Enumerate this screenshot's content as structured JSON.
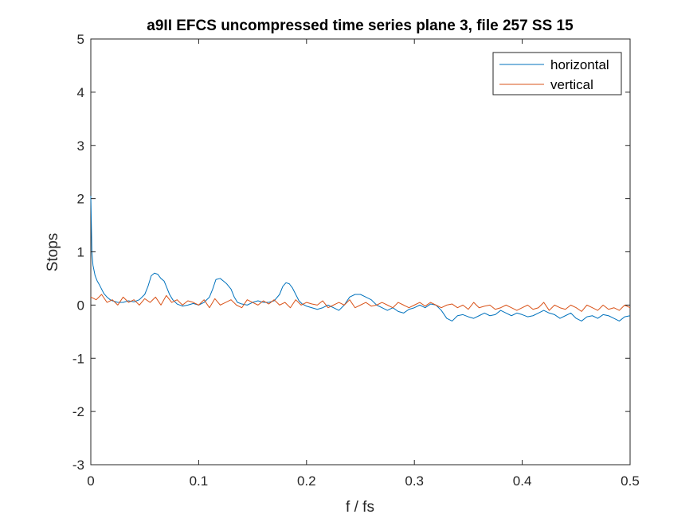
{
  "chart_data": {
    "type": "line",
    "title": "a9II EFCS uncompressed time series plane 3, file 257 SS 15",
    "xlabel": "f / fs",
    "ylabel": "Stops",
    "xlim": [
      0,
      0.5
    ],
    "ylim": [
      -3,
      5
    ],
    "xticks": [
      0,
      0.1,
      0.2,
      0.3,
      0.4,
      0.5
    ],
    "xtick_labels": [
      "0",
      "0.1",
      "0.2",
      "0.3",
      "0.4",
      "0.5"
    ],
    "yticks": [
      -3,
      -2,
      -1,
      0,
      1,
      2,
      3,
      4,
      5
    ],
    "ytick_labels": [
      "-3",
      "-2",
      "-1",
      "0",
      "1",
      "2",
      "3",
      "4",
      "5"
    ],
    "grid": false,
    "legend": {
      "location": "top-right"
    },
    "series": [
      {
        "name": "horizontal",
        "color": "#0072BD",
        "x": [
          0,
          0.001,
          0.002,
          0.004,
          0.006,
          0.008,
          0.01,
          0.012,
          0.015,
          0.018,
          0.02,
          0.025,
          0.03,
          0.035,
          0.04,
          0.045,
          0.05,
          0.053,
          0.056,
          0.059,
          0.062,
          0.065,
          0.068,
          0.07,
          0.073,
          0.076,
          0.08,
          0.085,
          0.09,
          0.095,
          0.1,
          0.105,
          0.11,
          0.113,
          0.116,
          0.12,
          0.123,
          0.126,
          0.13,
          0.133,
          0.136,
          0.14,
          0.145,
          0.15,
          0.155,
          0.16,
          0.165,
          0.17,
          0.175,
          0.178,
          0.181,
          0.184,
          0.187,
          0.19,
          0.193,
          0.196,
          0.2,
          0.205,
          0.21,
          0.215,
          0.22,
          0.225,
          0.23,
          0.235,
          0.24,
          0.245,
          0.25,
          0.255,
          0.26,
          0.265,
          0.27,
          0.275,
          0.28,
          0.285,
          0.29,
          0.295,
          0.3,
          0.305,
          0.31,
          0.315,
          0.32,
          0.325,
          0.33,
          0.335,
          0.34,
          0.345,
          0.35,
          0.355,
          0.36,
          0.365,
          0.37,
          0.375,
          0.38,
          0.385,
          0.39,
          0.395,
          0.4,
          0.405,
          0.41,
          0.415,
          0.42,
          0.425,
          0.43,
          0.435,
          0.44,
          0.445,
          0.45,
          0.455,
          0.46,
          0.465,
          0.47,
          0.475,
          0.48,
          0.485,
          0.49,
          0.495,
          0.5
        ],
        "values": [
          2.05,
          1.0,
          0.75,
          0.55,
          0.45,
          0.38,
          0.3,
          0.22,
          0.15,
          0.1,
          0.08,
          0.05,
          0.05,
          0.08,
          0.06,
          0.1,
          0.2,
          0.35,
          0.55,
          0.6,
          0.58,
          0.5,
          0.45,
          0.35,
          0.2,
          0.1,
          0.02,
          -0.02,
          0.0,
          0.03,
          0.0,
          0.05,
          0.15,
          0.3,
          0.48,
          0.5,
          0.45,
          0.4,
          0.3,
          0.15,
          0.05,
          0.02,
          0.0,
          0.05,
          0.08,
          0.05,
          0.05,
          0.08,
          0.2,
          0.35,
          0.42,
          0.4,
          0.32,
          0.2,
          0.08,
          0.02,
          -0.02,
          -0.05,
          -0.08,
          -0.05,
          0.0,
          -0.05,
          -0.1,
          0.0,
          0.15,
          0.2,
          0.2,
          0.15,
          0.1,
          0.0,
          -0.05,
          -0.1,
          -0.05,
          -0.12,
          -0.15,
          -0.08,
          -0.05,
          0.0,
          -0.05,
          0.02,
          0.0,
          -0.1,
          -0.25,
          -0.3,
          -0.2,
          -0.18,
          -0.22,
          -0.25,
          -0.2,
          -0.15,
          -0.2,
          -0.18,
          -0.1,
          -0.15,
          -0.2,
          -0.15,
          -0.18,
          -0.22,
          -0.2,
          -0.15,
          -0.1,
          -0.15,
          -0.18,
          -0.25,
          -0.2,
          -0.15,
          -0.25,
          -0.3,
          -0.22,
          -0.2,
          -0.25,
          -0.18,
          -0.2,
          -0.25,
          -0.3,
          -0.22,
          -0.2
        ]
      },
      {
        "name": "vertical",
        "color": "#D95319",
        "x": [
          0,
          0.005,
          0.01,
          0.015,
          0.02,
          0.025,
          0.03,
          0.035,
          0.04,
          0.045,
          0.05,
          0.055,
          0.06,
          0.065,
          0.07,
          0.075,
          0.08,
          0.085,
          0.09,
          0.095,
          0.1,
          0.105,
          0.11,
          0.115,
          0.12,
          0.125,
          0.13,
          0.135,
          0.14,
          0.145,
          0.15,
          0.155,
          0.16,
          0.165,
          0.17,
          0.175,
          0.18,
          0.185,
          0.19,
          0.195,
          0.2,
          0.205,
          0.21,
          0.215,
          0.22,
          0.225,
          0.23,
          0.235,
          0.24,
          0.245,
          0.25,
          0.255,
          0.26,
          0.265,
          0.27,
          0.275,
          0.28,
          0.285,
          0.29,
          0.295,
          0.3,
          0.305,
          0.31,
          0.315,
          0.32,
          0.325,
          0.33,
          0.335,
          0.34,
          0.345,
          0.35,
          0.355,
          0.36,
          0.365,
          0.37,
          0.375,
          0.38,
          0.385,
          0.39,
          0.395,
          0.4,
          0.405,
          0.41,
          0.415,
          0.42,
          0.425,
          0.43,
          0.435,
          0.44,
          0.445,
          0.45,
          0.455,
          0.46,
          0.465,
          0.47,
          0.475,
          0.48,
          0.485,
          0.49,
          0.495,
          0.5
        ],
        "values": [
          0.15,
          0.1,
          0.2,
          0.05,
          0.1,
          0.0,
          0.15,
          0.05,
          0.1,
          0.0,
          0.12,
          0.05,
          0.15,
          0.0,
          0.18,
          0.05,
          0.1,
          0.0,
          0.08,
          0.05,
          0.0,
          0.1,
          -0.05,
          0.12,
          0.0,
          0.05,
          0.1,
          0.0,
          -0.05,
          0.1,
          0.05,
          0.0,
          0.08,
          0.02,
          0.1,
          0.0,
          0.05,
          -0.05,
          0.1,
          0.0,
          0.05,
          0.02,
          0.0,
          0.08,
          -0.05,
          0.0,
          0.05,
          0.0,
          0.1,
          -0.05,
          0.0,
          0.05,
          -0.02,
          0.0,
          0.05,
          0.0,
          -0.05,
          0.05,
          0.0,
          -0.05,
          0.0,
          0.05,
          -0.02,
          0.05,
          0.0,
          -0.05,
          0.0,
          0.02,
          -0.05,
          0.0,
          -0.08,
          0.05,
          -0.05,
          -0.02,
          0.0,
          -0.08,
          -0.05,
          0.0,
          -0.05,
          -0.1,
          -0.05,
          0.0,
          -0.08,
          -0.05,
          0.05,
          -0.1,
          0.0,
          -0.05,
          -0.08,
          0.0,
          -0.05,
          -0.12,
          0.0,
          -0.05,
          -0.1,
          0.0,
          -0.08,
          -0.05,
          -0.1,
          0.0,
          -0.05
        ]
      }
    ]
  }
}
